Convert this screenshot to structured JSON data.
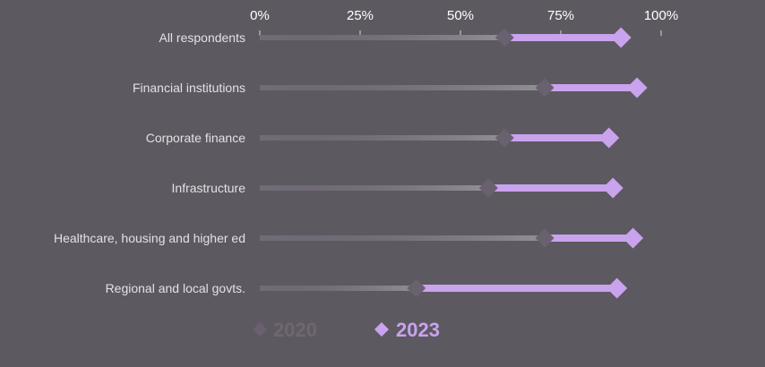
{
  "chart_data": {
    "type": "dumbbell",
    "title": "",
    "xlabel": "",
    "ylabel": "",
    "xlim": [
      0,
      100
    ],
    "x_ticks": [
      "0%",
      "25%",
      "50%",
      "75%",
      "100%"
    ],
    "x_tick_values": [
      0,
      25,
      50,
      75,
      100
    ],
    "x_axis_position": "top",
    "grid": false,
    "legend_position": "bottom-left",
    "categories": [
      "All respondents",
      "Financial institutions",
      "Corporate finance",
      "Infrastructure",
      "Healthcare, housing and higher ed",
      "Regional and local govts."
    ],
    "series": [
      {
        "name": "2020",
        "values": [
          61,
          71,
          61,
          57,
          71,
          39
        ],
        "color": "#6a6170"
      },
      {
        "name": "2023",
        "values": [
          90,
          94,
          87,
          88,
          93,
          89
        ],
        "color": "#c9a3ee"
      }
    ],
    "colors": {
      "background": "#5d5960",
      "track": "#726b78",
      "marker_2020": "#6a6170",
      "marker_2023": "#c9a3ee",
      "legend_2020_text": "#6e6673",
      "legend_2023_text": "#c9a3ee"
    }
  }
}
